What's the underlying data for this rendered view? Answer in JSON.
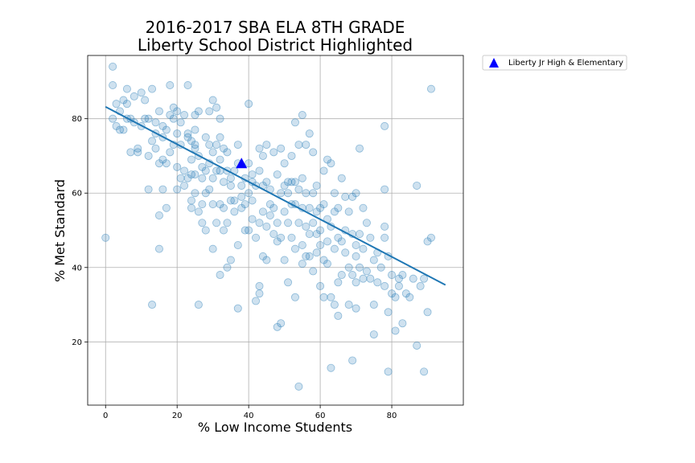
{
  "chart_data": {
    "type": "scatter",
    "title": "2016-2017 SBA ELA 8TH GRADE",
    "subtitle": "Liberty School District Highlighted",
    "xlabel": "% Low Income Students",
    "ylabel": "% Met Standard",
    "xlim": [
      -5,
      100
    ],
    "ylim": [
      3,
      97
    ],
    "x_ticks": [
      0,
      20,
      40,
      60,
      80
    ],
    "y_ticks": [
      20,
      40,
      60,
      80
    ],
    "grid": true,
    "legend_position": "outside top-right",
    "colors": {
      "scatter": "#1f77b4",
      "trend": "#1f77b4",
      "highlight": "#0000ff"
    },
    "series": [
      {
        "kind": "scatter",
        "points": [
          [
            0,
            48
          ],
          [
            2,
            94
          ],
          [
            2,
            89
          ],
          [
            2,
            80
          ],
          [
            3,
            84
          ],
          [
            3,
            78
          ],
          [
            4,
            82
          ],
          [
            4,
            77
          ],
          [
            5,
            85
          ],
          [
            5,
            77
          ],
          [
            6,
            88
          ],
          [
            6,
            80
          ],
          [
            6,
            84
          ],
          [
            7,
            80
          ],
          [
            7,
            71
          ],
          [
            8,
            86
          ],
          [
            8,
            79
          ],
          [
            9,
            71
          ],
          [
            9,
            72
          ],
          [
            10,
            78
          ],
          [
            10,
            87
          ],
          [
            11,
            85
          ],
          [
            11,
            80
          ],
          [
            12,
            80
          ],
          [
            12,
            70
          ],
          [
            12,
            61
          ],
          [
            13,
            88
          ],
          [
            13,
            74
          ],
          [
            13,
            30
          ],
          [
            14,
            79
          ],
          [
            14,
            72
          ],
          [
            14,
            76
          ],
          [
            15,
            54
          ],
          [
            15,
            45
          ],
          [
            15,
            68
          ],
          [
            15,
            82
          ],
          [
            16,
            75
          ],
          [
            16,
            69
          ],
          [
            16,
            61
          ],
          [
            16,
            78
          ],
          [
            17,
            77
          ],
          [
            17,
            56
          ],
          [
            17,
            68
          ],
          [
            18,
            89
          ],
          [
            18,
            81
          ],
          [
            18,
            71
          ],
          [
            19,
            73
          ],
          [
            19,
            80
          ],
          [
            19,
            83
          ],
          [
            20,
            61
          ],
          [
            20,
            67
          ],
          [
            20,
            82
          ],
          [
            20,
            76
          ],
          [
            21,
            64
          ],
          [
            21,
            79
          ],
          [
            21,
            73
          ],
          [
            22,
            66
          ],
          [
            22,
            62
          ],
          [
            22,
            81
          ],
          [
            23,
            75
          ],
          [
            23,
            64
          ],
          [
            23,
            89
          ],
          [
            23,
            76
          ],
          [
            24,
            74
          ],
          [
            24,
            69
          ],
          [
            24,
            58
          ],
          [
            24,
            56
          ],
          [
            24,
            65
          ],
          [
            25,
            81
          ],
          [
            25,
            77
          ],
          [
            25,
            72
          ],
          [
            25,
            73
          ],
          [
            25,
            65
          ],
          [
            25,
            60
          ],
          [
            26,
            82
          ],
          [
            26,
            30
          ],
          [
            26,
            55
          ],
          [
            26,
            70
          ],
          [
            27,
            64
          ],
          [
            27,
            67
          ],
          [
            27,
            57
          ],
          [
            27,
            52
          ],
          [
            28,
            75
          ],
          [
            28,
            66
          ],
          [
            28,
            60
          ],
          [
            28,
            50
          ],
          [
            29,
            73
          ],
          [
            29,
            68
          ],
          [
            29,
            82
          ],
          [
            29,
            61
          ],
          [
            30,
            71
          ],
          [
            30,
            64
          ],
          [
            30,
            57
          ],
          [
            30,
            45
          ],
          [
            30,
            85
          ],
          [
            31,
            73
          ],
          [
            31,
            66
          ],
          [
            31,
            52
          ],
          [
            31,
            83
          ],
          [
            32,
            80
          ],
          [
            32,
            75
          ],
          [
            32,
            66
          ],
          [
            32,
            69
          ],
          [
            32,
            57
          ],
          [
            32,
            38
          ],
          [
            33,
            72
          ],
          [
            33,
            63
          ],
          [
            33,
            56
          ],
          [
            33,
            50
          ],
          [
            34,
            71
          ],
          [
            34,
            66
          ],
          [
            34,
            52
          ],
          [
            34,
            40
          ],
          [
            35,
            64
          ],
          [
            35,
            58
          ],
          [
            35,
            42
          ],
          [
            35,
            62
          ],
          [
            36,
            66
          ],
          [
            36,
            58
          ],
          [
            36,
            55
          ],
          [
            37,
            73
          ],
          [
            37,
            68
          ],
          [
            37,
            46
          ],
          [
            37,
            29
          ],
          [
            38,
            62
          ],
          [
            38,
            59
          ],
          [
            38,
            56
          ],
          [
            39,
            64
          ],
          [
            39,
            57
          ],
          [
            39,
            50
          ],
          [
            40,
            84
          ],
          [
            40,
            68
          ],
          [
            40,
            60
          ],
          [
            40,
            50
          ],
          [
            41,
            65
          ],
          [
            41,
            63
          ],
          [
            41,
            58
          ],
          [
            41,
            53
          ],
          [
            42,
            62
          ],
          [
            42,
            48
          ],
          [
            42,
            31
          ],
          [
            43,
            72
          ],
          [
            43,
            66
          ],
          [
            43,
            52
          ],
          [
            43,
            35
          ],
          [
            43,
            33
          ],
          [
            44,
            70
          ],
          [
            44,
            62
          ],
          [
            44,
            55
          ],
          [
            44,
            43
          ],
          [
            45,
            73
          ],
          [
            45,
            63
          ],
          [
            45,
            51
          ],
          [
            45,
            42
          ],
          [
            46,
            61
          ],
          [
            46,
            57
          ],
          [
            46,
            54
          ],
          [
            47,
            71
          ],
          [
            47,
            56
          ],
          [
            47,
            49
          ],
          [
            48,
            52
          ],
          [
            48,
            47
          ],
          [
            48,
            24
          ],
          [
            48,
            65
          ],
          [
            49,
            72
          ],
          [
            49,
            60
          ],
          [
            49,
            48
          ],
          [
            49,
            25
          ],
          [
            50,
            68
          ],
          [
            50,
            62
          ],
          [
            50,
            55
          ],
          [
            50,
            42
          ],
          [
            51,
            63
          ],
          [
            51,
            60
          ],
          [
            51,
            52
          ],
          [
            51,
            36
          ],
          [
            52,
            70
          ],
          [
            52,
            63
          ],
          [
            52,
            57
          ],
          [
            52,
            48
          ],
          [
            53,
            79
          ],
          [
            53,
            63
          ],
          [
            53,
            57
          ],
          [
            53,
            45
          ],
          [
            53,
            32
          ],
          [
            54,
            73
          ],
          [
            54,
            61
          ],
          [
            54,
            52
          ],
          [
            54,
            8
          ],
          [
            55,
            81
          ],
          [
            55,
            64
          ],
          [
            55,
            56
          ],
          [
            55,
            46
          ],
          [
            55,
            41
          ],
          [
            56,
            73
          ],
          [
            56,
            60
          ],
          [
            56,
            51
          ],
          [
            56,
            43
          ],
          [
            57,
            76
          ],
          [
            57,
            56
          ],
          [
            57,
            49
          ],
          [
            57,
            43
          ],
          [
            58,
            71
          ],
          [
            58,
            60
          ],
          [
            58,
            52
          ],
          [
            58,
            39
          ],
          [
            59,
            62
          ],
          [
            59,
            55
          ],
          [
            59,
            49
          ],
          [
            59,
            44
          ],
          [
            60,
            56
          ],
          [
            60,
            50
          ],
          [
            60,
            46
          ],
          [
            60,
            35
          ],
          [
            61,
            66
          ],
          [
            61,
            57
          ],
          [
            61,
            42
          ],
          [
            61,
            32
          ],
          [
            62,
            69
          ],
          [
            62,
            53
          ],
          [
            62,
            47
          ],
          [
            62,
            41
          ],
          [
            63,
            68
          ],
          [
            63,
            51
          ],
          [
            63,
            32
          ],
          [
            63,
            13
          ],
          [
            64,
            60
          ],
          [
            64,
            55
          ],
          [
            64,
            45
          ],
          [
            64,
            30
          ],
          [
            65,
            56
          ],
          [
            65,
            48
          ],
          [
            65,
            36
          ],
          [
            65,
            27
          ],
          [
            66,
            64
          ],
          [
            66,
            47
          ],
          [
            66,
            38
          ],
          [
            67,
            59
          ],
          [
            67,
            50
          ],
          [
            67,
            44
          ],
          [
            68,
            55
          ],
          [
            68,
            40
          ],
          [
            68,
            30
          ],
          [
            69,
            59
          ],
          [
            69,
            49
          ],
          [
            69,
            38
          ],
          [
            69,
            15
          ],
          [
            70,
            60
          ],
          [
            70,
            46
          ],
          [
            70,
            43
          ],
          [
            70,
            36
          ],
          [
            70,
            29
          ],
          [
            71,
            72
          ],
          [
            71,
            49
          ],
          [
            71,
            40
          ],
          [
            72,
            56
          ],
          [
            72,
            45
          ],
          [
            72,
            37
          ],
          [
            73,
            52
          ],
          [
            73,
            39
          ],
          [
            74,
            48
          ],
          [
            74,
            37
          ],
          [
            75,
            42
          ],
          [
            75,
            30
          ],
          [
            75,
            22
          ],
          [
            76,
            44
          ],
          [
            76,
            36
          ],
          [
            77,
            40
          ],
          [
            78,
            78
          ],
          [
            78,
            61
          ],
          [
            78,
            51
          ],
          [
            78,
            48
          ],
          [
            78,
            35
          ],
          [
            79,
            43
          ],
          [
            79,
            28
          ],
          [
            79,
            12
          ],
          [
            80,
            38
          ],
          [
            80,
            33
          ],
          [
            81,
            32
          ],
          [
            81,
            23
          ],
          [
            82,
            37
          ],
          [
            82,
            35
          ],
          [
            83,
            38
          ],
          [
            83,
            25
          ],
          [
            84,
            33
          ],
          [
            85,
            32
          ],
          [
            86,
            37
          ],
          [
            87,
            62
          ],
          [
            87,
            19
          ],
          [
            88,
            35
          ],
          [
            89,
            12
          ],
          [
            89,
            37
          ],
          [
            90,
            47
          ],
          [
            90,
            28
          ],
          [
            91,
            48
          ],
          [
            91,
            88
          ]
        ]
      }
    ],
    "trendline": {
      "x": [
        0,
        95
      ],
      "y": [
        83.2,
        35.3
      ]
    },
    "highlight": {
      "name": "Liberty Jr High & Elementary",
      "x": 38,
      "y": 68,
      "marker": "triangle"
    }
  }
}
